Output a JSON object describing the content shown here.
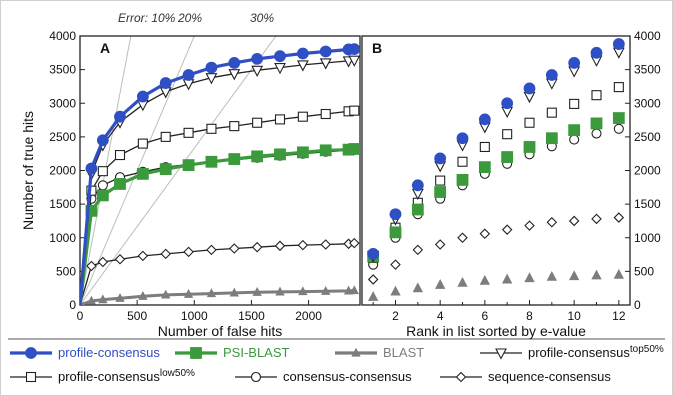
{
  "chart_data": [
    {
      "panel": "A",
      "type": "line",
      "xlabel": "Number of false hits",
      "ylabel": "Number of true hits",
      "xlim": [
        0,
        2450
      ],
      "ylim": [
        0,
        4000
      ],
      "x_ticks": [
        0,
        500,
        1000,
        1500,
        2000
      ],
      "y_ticks": [
        0,
        500,
        1000,
        1500,
        2000,
        2500,
        3000,
        3500,
        4000
      ],
      "grid": false,
      "error_lines": [
        {
          "label": "Error: 10%",
          "slope": 9
        },
        {
          "label": "20%",
          "slope": 4
        },
        {
          "label": "30%",
          "slope": 2.333
        }
      ],
      "series": [
        {
          "name": "profile-consensus",
          "marker": "circle-filled",
          "color": "#2f4fc4",
          "lw": 3.2,
          "ms": 5.5,
          "x": [
            0,
            100,
            200,
            350,
            550,
            750,
            950,
            1150,
            1350,
            1550,
            1750,
            1950,
            2150,
            2350,
            2400
          ],
          "y": [
            0,
            2030,
            2450,
            2800,
            3100,
            3300,
            3420,
            3530,
            3600,
            3660,
            3700,
            3740,
            3770,
            3800,
            3805
          ]
        },
        {
          "name": "PSI-BLAST",
          "marker": "square-filled",
          "color": "#3b9a3b",
          "lw": 3.2,
          "ms": 5.5,
          "x": [
            0,
            100,
            200,
            350,
            550,
            750,
            950,
            1150,
            1350,
            1550,
            1750,
            1950,
            2150,
            2350,
            2400
          ],
          "y": [
            0,
            1400,
            1630,
            1800,
            1950,
            2020,
            2080,
            2130,
            2170,
            2210,
            2240,
            2270,
            2300,
            2310,
            2320
          ]
        },
        {
          "name": "BLAST",
          "marker": "triangle-filled",
          "color": "#7d7d7d",
          "lw": 3,
          "ms": 4,
          "x": [
            0,
            100,
            200,
            350,
            550,
            750,
            950,
            1150,
            1350,
            1550,
            1750,
            1950,
            2150,
            2350,
            2400
          ],
          "y": [
            0,
            60,
            80,
            100,
            130,
            150,
            160,
            170,
            180,
            190,
            195,
            200,
            205,
            210,
            215
          ]
        },
        {
          "name": "profile-consensus",
          "name_sup": "top50%",
          "marker": "triangle-open",
          "color": "#222222",
          "lw": 1.3,
          "ms": 5,
          "x": [
            0,
            100,
            200,
            350,
            550,
            750,
            950,
            1150,
            1350,
            1550,
            1750,
            1950,
            2150,
            2350,
            2400
          ],
          "y": [
            0,
            1950,
            2380,
            2720,
            2980,
            3170,
            3290,
            3380,
            3440,
            3490,
            3530,
            3570,
            3600,
            3630,
            3640
          ]
        },
        {
          "name": "profile-consensus",
          "name_sup": "low50%",
          "marker": "square-open",
          "color": "#222222",
          "lw": 1.3,
          "ms": 4.5,
          "x": [
            0,
            100,
            200,
            350,
            550,
            750,
            950,
            1150,
            1350,
            1550,
            1750,
            1950,
            2150,
            2350,
            2400
          ],
          "y": [
            0,
            1700,
            1990,
            2230,
            2400,
            2500,
            2560,
            2620,
            2660,
            2710,
            2760,
            2800,
            2840,
            2880,
            2890
          ]
        },
        {
          "name": "consensus-consensus",
          "marker": "circle-open",
          "color": "#222222",
          "lw": 1.3,
          "ms": 4.5,
          "x": [
            0,
            100,
            200,
            350,
            550,
            750,
            950,
            1150,
            1350,
            1550,
            1750,
            1950,
            2150,
            2350,
            2400
          ],
          "y": [
            0,
            1580,
            1780,
            1900,
            1980,
            2050,
            2090,
            2130,
            2160,
            2190,
            2220,
            2250,
            2280,
            2300,
            2310
          ]
        },
        {
          "name": "sequence-consensus",
          "marker": "diamond-open",
          "color": "#222222",
          "lw": 1.3,
          "ms": 4.5,
          "x": [
            0,
            100,
            200,
            350,
            550,
            750,
            950,
            1150,
            1350,
            1550,
            1750,
            1950,
            2150,
            2350,
            2400
          ],
          "y": [
            0,
            580,
            640,
            680,
            730,
            760,
            790,
            820,
            840,
            860,
            880,
            890,
            900,
            910,
            920
          ]
        }
      ]
    },
    {
      "panel": "B",
      "type": "scatter",
      "xlabel": "Rank in list sorted by e-value",
      "ylabel": "",
      "xlim": [
        0.5,
        12.5
      ],
      "ylim": [
        0,
        4000
      ],
      "x_ticks": [
        2,
        4,
        6,
        8,
        10,
        12
      ],
      "y_ticks": [
        0,
        500,
        1000,
        1500,
        2000,
        2500,
        3000,
        3500,
        4000
      ],
      "grid": false,
      "series": [
        {
          "name": "profile-consensus",
          "marker": "circle-filled",
          "color": "#2f4fc4",
          "ms": 5.5,
          "x": [
            1,
            2,
            3,
            4,
            5,
            6,
            7,
            8,
            9,
            10,
            11,
            12
          ],
          "y": [
            760,
            1350,
            1780,
            2180,
            2480,
            2760,
            3000,
            3220,
            3420,
            3600,
            3750,
            3880
          ]
        },
        {
          "name": "PSI-BLAST",
          "marker": "square-filled",
          "color": "#3b9a3b",
          "ms": 5.5,
          "x": [
            1,
            2,
            3,
            4,
            5,
            6,
            7,
            8,
            9,
            10,
            11,
            12
          ],
          "y": [
            720,
            1080,
            1420,
            1680,
            1860,
            2050,
            2200,
            2350,
            2480,
            2600,
            2700,
            2780
          ]
        },
        {
          "name": "BLAST",
          "marker": "triangle-filled",
          "color": "#7d7d7d",
          "ms": 4.5,
          "x": [
            1,
            2,
            3,
            4,
            5,
            6,
            7,
            8,
            9,
            10,
            11,
            12
          ],
          "y": [
            120,
            200,
            250,
            300,
            330,
            360,
            380,
            400,
            420,
            430,
            440,
            450
          ]
        },
        {
          "name": "profile-consensus",
          "name_sup": "top50%",
          "marker": "triangle-open",
          "color": "#222222",
          "ms": 5,
          "x": [
            1,
            2,
            3,
            4,
            5,
            6,
            7,
            8,
            9,
            10,
            11,
            12
          ],
          "y": [
            730,
            1280,
            1660,
            2070,
            2380,
            2650,
            2880,
            3100,
            3300,
            3480,
            3640,
            3760
          ]
        },
        {
          "name": "profile-consensus",
          "name_sup": "low50%",
          "marker": "square-open",
          "color": "#222222",
          "ms": 4.5,
          "x": [
            1,
            2,
            3,
            4,
            5,
            6,
            7,
            8,
            9,
            10,
            11,
            12
          ],
          "y": [
            700,
            1150,
            1520,
            1850,
            2130,
            2350,
            2540,
            2710,
            2860,
            2990,
            3120,
            3240
          ]
        },
        {
          "name": "consensus-consensus",
          "marker": "circle-open",
          "color": "#222222",
          "ms": 4.5,
          "x": [
            1,
            2,
            3,
            4,
            5,
            6,
            7,
            8,
            9,
            10,
            11,
            12
          ],
          "y": [
            600,
            1000,
            1350,
            1580,
            1780,
            1950,
            2100,
            2240,
            2360,
            2460,
            2550,
            2620
          ]
        },
        {
          "name": "sequence-consensus",
          "marker": "diamond-open",
          "color": "#222222",
          "ms": 4.5,
          "x": [
            1,
            2,
            3,
            4,
            5,
            6,
            7,
            8,
            9,
            10,
            11,
            12
          ],
          "y": [
            380,
            600,
            820,
            900,
            1000,
            1060,
            1120,
            1180,
            1230,
            1250,
            1280,
            1300
          ]
        }
      ]
    }
  ]
}
